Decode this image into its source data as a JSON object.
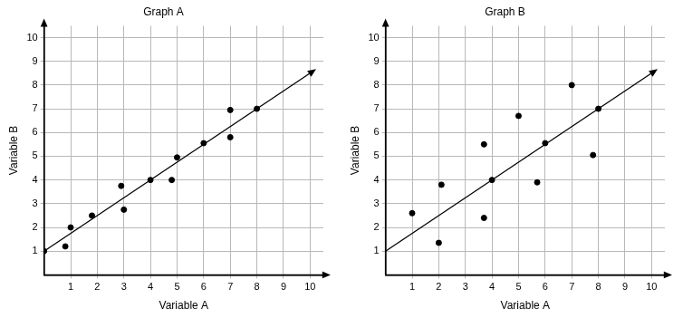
{
  "chart_data": [
    {
      "type": "scatter",
      "title": "Graph A",
      "x_label": "Variable A",
      "y_label": "Variable B",
      "xlim": [
        0,
        10.5
      ],
      "ylim": [
        0,
        10.5
      ],
      "xticks": [
        1,
        2,
        3,
        4,
        5,
        6,
        7,
        8,
        9,
        10
      ],
      "yticks": [
        1,
        2,
        3,
        4,
        5,
        6,
        7,
        8,
        9,
        10
      ],
      "grid": true,
      "series": [
        {
          "type": "scatter",
          "color": "#000000",
          "marker": "circle",
          "x": [
            0,
            0.8,
            1,
            1.8,
            2.9,
            3,
            4,
            4.8,
            5,
            6,
            7,
            7,
            8
          ],
          "values": [
            1,
            1.2,
            2,
            2.5,
            3.75,
            2.75,
            4,
            4,
            4.95,
            5.55,
            6.95,
            5.8,
            7
          ]
        },
        {
          "type": "line",
          "color": "#000000",
          "line_style": "solid",
          "x": [
            0,
            10
          ],
          "values": [
            1,
            8.5
          ]
        }
      ]
    },
    {
      "type": "scatter",
      "title": "Graph B",
      "x_label": "Variable A",
      "y_label": "Variable B",
      "xlim": [
        0,
        10.5
      ],
      "ylim": [
        0,
        10.5
      ],
      "xticks": [
        1,
        2,
        3,
        4,
        5,
        6,
        7,
        8,
        9,
        10
      ],
      "yticks": [
        1,
        2,
        3,
        4,
        5,
        6,
        7,
        8,
        9,
        10
      ],
      "grid": true,
      "series": [
        {
          "type": "scatter",
          "color": "#000000",
          "marker": "circle",
          "x": [
            1,
            2,
            2.1,
            3.7,
            3.7,
            4,
            5,
            5.7,
            6,
            7,
            7.8,
            8
          ],
          "values": [
            2.6,
            1.35,
            3.8,
            5.5,
            2.4,
            4,
            6.7,
            3.9,
            5.55,
            8,
            5.05,
            7
          ]
        },
        {
          "type": "line",
          "color": "#000000",
          "line_style": "solid",
          "x": [
            0,
            10
          ],
          "values": [
            1,
            8.5
          ]
        }
      ]
    }
  ]
}
